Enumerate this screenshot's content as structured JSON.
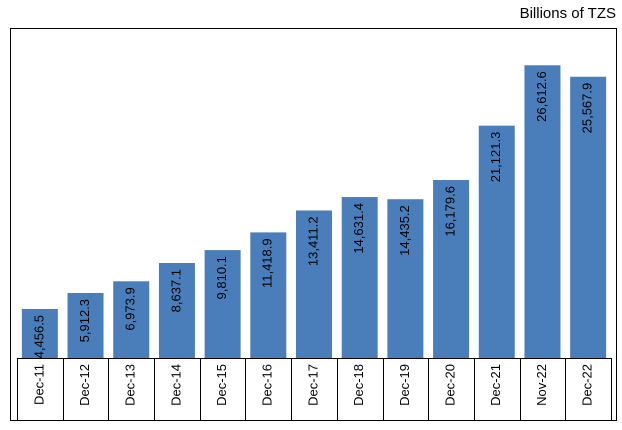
{
  "chart_data": {
    "type": "bar",
    "title": "Billions of TZS",
    "categories": [
      "Dec-11",
      "Dec-12",
      "Dec-13",
      "Dec-14",
      "Dec-15",
      "Dec-16",
      "Dec-17",
      "Dec-18",
      "Dec-19",
      "Dec-20",
      "Dec-21",
      "Nov-22",
      "Dec-22"
    ],
    "values": [
      4456.5,
      5912.3,
      6973.9,
      8637.1,
      9810.1,
      11418.9,
      13411.2,
      14631.4,
      14435.2,
      16179.6,
      21121.3,
      26612.6,
      25567.9
    ],
    "value_labels": [
      "4,456.5",
      "5,912.3",
      "6,973.9",
      "8,637.1",
      "9,810.1",
      "11,418.9",
      "13,411.2",
      "14,631.4",
      "14,435.2",
      "16,179.6",
      "21,121.3",
      "26,612.6",
      "25,567.9"
    ],
    "color": "#4a7ebb",
    "ylim": [
      0,
      30000
    ]
  }
}
